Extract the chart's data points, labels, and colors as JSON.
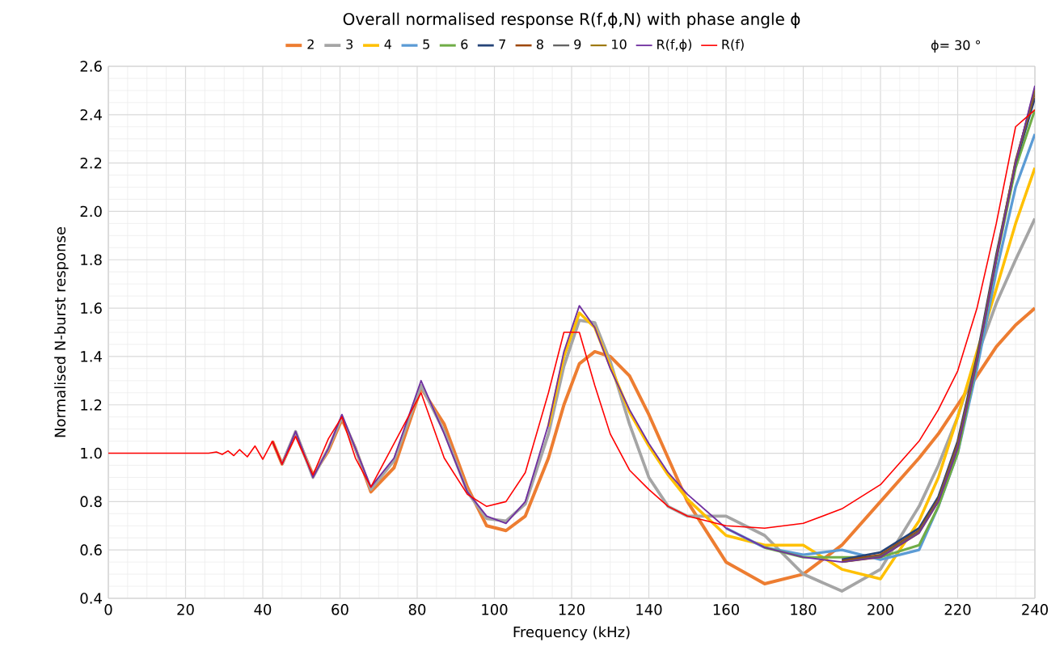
{
  "chart_data": {
    "type": "line",
    "title": "Overall normalised response R(f,ϕ,N) with phase angle ϕ",
    "xlabel": "Frequency (kHz)",
    "ylabel": "Normalised N-burst response",
    "annotations": [
      "ϕ= 30 °"
    ],
    "x": [
      0,
      20,
      26,
      28,
      29.5,
      31,
      32.5,
      34,
      36,
      38,
      40,
      42.5,
      45,
      48.5,
      53,
      57,
      60.5,
      64,
      68,
      74,
      81,
      87,
      93,
      98,
      103,
      108,
      114,
      118,
      122,
      126,
      130,
      135,
      140,
      145,
      150,
      160,
      170,
      180,
      190,
      200,
      210,
      215,
      220,
      225,
      230,
      235,
      240
    ],
    "series": [
      {
        "name": "2",
        "color": "#ed7d31",
        "values": [
          null,
          null,
          null,
          null,
          null,
          null,
          null,
          null,
          null,
          null,
          null,
          1.05,
          0.955,
          1.08,
          0.91,
          1.01,
          1.14,
          1.02,
          0.84,
          0.94,
          1.27,
          1.12,
          0.86,
          0.7,
          0.68,
          0.74,
          0.98,
          1.2,
          1.37,
          1.42,
          1.4,
          1.32,
          1.16,
          0.98,
          0.8,
          0.55,
          0.46,
          0.5,
          0.62,
          0.8,
          0.98,
          1.08,
          1.2,
          1.32,
          1.44,
          1.53,
          1.6
        ]
      },
      {
        "name": "3",
        "color": "#a5a5a5",
        "values": [
          null,
          null,
          null,
          null,
          null,
          null,
          null,
          null,
          null,
          null,
          null,
          null,
          0.955,
          1.09,
          0.9,
          1.02,
          1.15,
          1.02,
          0.85,
          0.97,
          1.28,
          1.09,
          0.84,
          0.73,
          0.72,
          0.79,
          1.08,
          1.36,
          1.55,
          1.54,
          1.38,
          1.12,
          0.9,
          0.78,
          0.74,
          0.74,
          0.66,
          0.5,
          0.43,
          0.52,
          0.78,
          0.95,
          1.15,
          1.4,
          1.62,
          1.8,
          1.97
        ]
      },
      {
        "name": "4",
        "color": "#ffc000",
        "values": [
          null,
          null,
          null,
          null,
          null,
          null,
          null,
          null,
          null,
          null,
          null,
          null,
          null,
          null,
          null,
          null,
          null,
          null,
          null,
          null,
          null,
          null,
          null,
          null,
          null,
          null,
          1.11,
          1.4,
          1.58,
          1.52,
          1.36,
          1.17,
          1.03,
          0.91,
          0.81,
          0.66,
          0.62,
          0.62,
          0.52,
          0.48,
          0.72,
          0.9,
          1.15,
          1.42,
          1.68,
          1.95,
          2.18
        ]
      },
      {
        "name": "5",
        "color": "#5b9bd5",
        "values": [
          null,
          null,
          null,
          null,
          null,
          null,
          null,
          null,
          null,
          null,
          null,
          null,
          null,
          null,
          null,
          null,
          null,
          null,
          null,
          null,
          null,
          null,
          null,
          null,
          null,
          null,
          null,
          null,
          null,
          null,
          null,
          null,
          null,
          null,
          null,
          0.69,
          0.61,
          0.58,
          0.6,
          0.56,
          0.6,
          0.78,
          1.0,
          1.35,
          1.75,
          2.1,
          2.32
        ]
      },
      {
        "name": "6",
        "color": "#70ad47",
        "values": [
          null,
          null,
          null,
          null,
          null,
          null,
          null,
          null,
          null,
          null,
          null,
          null,
          null,
          null,
          null,
          null,
          null,
          null,
          null,
          null,
          null,
          null,
          null,
          null,
          null,
          null,
          null,
          null,
          null,
          null,
          null,
          null,
          null,
          null,
          null,
          null,
          0.61,
          0.57,
          0.57,
          0.57,
          0.62,
          0.78,
          1.0,
          1.38,
          1.8,
          2.18,
          2.42
        ]
      },
      {
        "name": "7",
        "color": "#264478",
        "values": [
          null,
          null,
          null,
          null,
          null,
          null,
          null,
          null,
          null,
          null,
          null,
          null,
          null,
          null,
          null,
          null,
          null,
          null,
          null,
          null,
          null,
          null,
          null,
          null,
          null,
          null,
          null,
          null,
          null,
          null,
          null,
          null,
          null,
          null,
          null,
          null,
          null,
          null,
          0.56,
          0.59,
          0.69,
          0.82,
          1.05,
          1.4,
          1.82,
          2.2,
          2.47
        ]
      },
      {
        "name": "8",
        "color": "#9e480e",
        "values": [
          null,
          null,
          null,
          null,
          null,
          null,
          null,
          null,
          null,
          null,
          null,
          null,
          null,
          null,
          null,
          null,
          null,
          null,
          null,
          null,
          null,
          null,
          null,
          null,
          null,
          null,
          null,
          null,
          null,
          null,
          null,
          null,
          null,
          null,
          null,
          null,
          null,
          null,
          0.555,
          0.58,
          0.68,
          0.81,
          1.04,
          1.39,
          1.81,
          2.21,
          2.49
        ]
      },
      {
        "name": "9",
        "color": "#636363",
        "values": [
          null,
          null,
          null,
          null,
          null,
          null,
          null,
          null,
          null,
          null,
          null,
          null,
          null,
          null,
          null,
          null,
          null,
          null,
          null,
          null,
          null,
          null,
          null,
          null,
          null,
          null,
          null,
          null,
          null,
          null,
          null,
          null,
          null,
          null,
          null,
          null,
          null,
          null,
          0.55,
          0.575,
          0.675,
          0.805,
          1.03,
          1.385,
          1.805,
          2.205,
          2.5
        ]
      },
      {
        "name": "10",
        "color": "#997300",
        "values": [
          null,
          null,
          null,
          null,
          null,
          null,
          null,
          null,
          null,
          null,
          null,
          null,
          null,
          null,
          null,
          null,
          null,
          null,
          null,
          null,
          null,
          null,
          null,
          null,
          null,
          null,
          null,
          null,
          null,
          null,
          null,
          null,
          null,
          null,
          null,
          null,
          null,
          null,
          0.55,
          0.57,
          0.67,
          0.8,
          1.02,
          1.38,
          1.8,
          2.2,
          2.51
        ]
      },
      {
        "name": "R(f,ϕ)",
        "color": "#7030a0",
        "values": [
          null,
          null,
          null,
          null,
          null,
          null,
          null,
          null,
          null,
          null,
          null,
          1.05,
          0.955,
          1.09,
          0.9,
          1.02,
          1.16,
          1.02,
          0.86,
          0.98,
          1.3,
          1.08,
          0.84,
          0.74,
          0.71,
          0.8,
          1.12,
          1.42,
          1.61,
          1.52,
          1.35,
          1.18,
          1.04,
          0.92,
          0.83,
          0.69,
          0.61,
          0.57,
          0.55,
          0.57,
          0.67,
          0.8,
          1.02,
          1.38,
          1.8,
          2.2,
          2.52
        ]
      },
      {
        "name": "R(f)",
        "color": "#ff0000",
        "values": [
          1,
          1,
          1,
          1.005,
          0.995,
          1.01,
          0.99,
          1.015,
          0.985,
          1.03,
          0.975,
          1.05,
          0.955,
          1.07,
          0.91,
          1.06,
          1.15,
          0.98,
          0.86,
          1.04,
          1.25,
          0.98,
          0.83,
          0.78,
          0.8,
          0.92,
          1.25,
          1.5,
          1.5,
          1.28,
          1.08,
          0.93,
          0.85,
          0.78,
          0.74,
          0.7,
          0.69,
          0.71,
          0.77,
          0.87,
          1.05,
          1.18,
          1.34,
          1.6,
          1.95,
          2.35,
          2.42
        ]
      }
    ],
    "xlim": [
      0,
      240
    ],
    "ylim": [
      0.4,
      2.6
    ],
    "xticks": [
      0,
      20,
      40,
      60,
      80,
      100,
      120,
      140,
      160,
      180,
      200,
      220,
      240
    ],
    "yticks": [
      0.4,
      0.6,
      0.8,
      {
        "value": 1.0,
        "label": "1.0"
      },
      1.2,
      1.4,
      1.6,
      1.8,
      {
        "value": 2.0,
        "label": "2.0"
      },
      2.2,
      2.4,
      2.6
    ],
    "grid": true,
    "legend": "top",
    "marker": "none",
    "line_style": "solid"
  }
}
